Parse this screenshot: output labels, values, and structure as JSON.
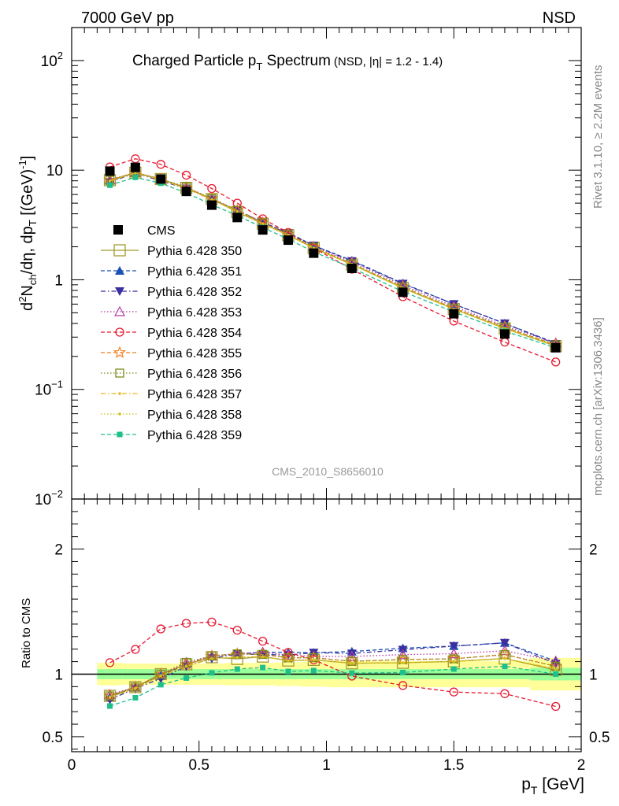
{
  "header": {
    "left": "7000 GeV pp",
    "right": "NSD",
    "side_rivet": "Rivet 3.1.10, ≥ 2.2M events",
    "side_mcplots": "mcplots.cern.ch [arXiv:1306.3436]",
    "watermark": "CMS_2010_S8656010"
  },
  "chart_data": {
    "type": "line",
    "title_main": "Charged Particle p",
    "title_sub": "T",
    "title_rest": " Spectrum",
    "title_small": "(NSD, |η| = 1.2 - 1.4)",
    "ylabel_main": "d²N",
    "ylabel_tex": "d2Nch/dη, dpT [(GeV)-1]",
    "ylabel_parts": [
      "d",
      "2",
      "N",
      "ch",
      "/dη, dp",
      "T",
      " [(GeV)",
      "-1",
      "]"
    ],
    "xlabel_parts": [
      "p",
      "T",
      " [GeV]"
    ],
    "ratio_ylabel": "Ratio to CMS",
    "xlim": [
      0,
      2
    ],
    "ylim": [
      0.01,
      200
    ],
    "ratio_ylim": [
      0.38,
      2.4
    ],
    "x_ticks": [
      "0",
      "0.5",
      "1",
      "1.5",
      "2"
    ],
    "x_tick_values": [
      0,
      0.5,
      1,
      1.5,
      2
    ],
    "y_ticks": [
      {
        "value": 100,
        "base": "10",
        "exp": "2"
      },
      {
        "value": 10,
        "base": "10",
        "exp": ""
      },
      {
        "value": 1,
        "base": "1",
        "exp": ""
      },
      {
        "value": 0.1,
        "base": "10",
        "exp": "−1"
      },
      {
        "value": 0.01,
        "base": "10",
        "exp": "−2"
      }
    ],
    "ratio_ticks": [
      {
        "value": 2,
        "label": "2"
      },
      {
        "value": 1,
        "label": "1"
      },
      {
        "value": 0.5,
        "label": "0.5"
      }
    ],
    "x": [
      0.15,
      0.25,
      0.35,
      0.45,
      0.55,
      0.65,
      0.75,
      0.85,
      0.95,
      1.1,
      1.3,
      1.5,
      1.7,
      1.9
    ],
    "data": {
      "name": "CMS",
      "values": [
        9.8,
        10.6,
        8.3,
        6.4,
        4.8,
        3.7,
        2.85,
        2.3,
        1.75,
        1.27,
        0.77,
        0.49,
        0.32,
        0.24
      ]
    },
    "band": {
      "x_edges": [
        0.1,
        0.2,
        0.3,
        0.4,
        0.5,
        0.6,
        0.7,
        0.8,
        0.9,
        1.0,
        1.2,
        1.4,
        1.6,
        1.8,
        2.0
      ],
      "stat_lo": [
        0.96,
        0.96,
        0.96,
        0.96,
        0.96,
        0.96,
        0.96,
        0.96,
        0.96,
        0.96,
        0.96,
        0.96,
        0.96,
        0.95
      ],
      "stat_hi": [
        1.04,
        1.04,
        1.04,
        1.04,
        1.04,
        1.04,
        1.04,
        1.04,
        1.04,
        1.04,
        1.04,
        1.04,
        1.04,
        1.05
      ],
      "total_lo": [
        0.91,
        0.915,
        0.915,
        0.915,
        0.915,
        0.91,
        0.91,
        0.905,
        0.9,
        0.895,
        0.895,
        0.895,
        0.895,
        0.87
      ],
      "total_hi": [
        1.09,
        1.085,
        1.085,
        1.085,
        1.085,
        1.09,
        1.09,
        1.095,
        1.1,
        1.105,
        1.105,
        1.105,
        1.105,
        1.13
      ]
    },
    "series": [
      {
        "name": "Pythia 6.428 350",
        "color": "#a49a2e",
        "marker": "open-square-large",
        "dash": "solid",
        "values": [
          8.1,
          9.5,
          8.3,
          6.9,
          5.45,
          4.15,
          3.25,
          2.55,
          1.95,
          1.38,
          0.84,
          0.54,
          0.36,
          0.248
        ]
      },
      {
        "name": "Pythia 6.428 351",
        "color": "#1c4fb6",
        "marker": "filled-triangle-up",
        "dash": "dash",
        "values": [
          8.0,
          9.5,
          8.2,
          6.9,
          5.5,
          4.3,
          3.35,
          2.7,
          2.05,
          1.5,
          0.93,
          0.6,
          0.4,
          0.265
        ]
      },
      {
        "name": "Pythia 6.428 352",
        "color": "#3a2f9e",
        "marker": "filled-triangle-down",
        "dash": "dashdot",
        "values": [
          7.8,
          9.4,
          8.0,
          6.8,
          5.4,
          4.3,
          3.3,
          2.65,
          2.05,
          1.48,
          0.92,
          0.6,
          0.4,
          0.26
        ]
      },
      {
        "name": "Pythia 6.428 353",
        "color": "#b43aa7",
        "marker": "open-triangle-up",
        "dash": "dotted",
        "values": [
          8.2,
          9.5,
          8.3,
          7.0,
          5.5,
          4.3,
          3.35,
          2.65,
          2.0,
          1.45,
          0.89,
          0.57,
          0.38,
          0.265
        ]
      },
      {
        "name": "Pythia 6.428 354",
        "color": "#e8182f",
        "marker": "open-circle",
        "dash": "dash",
        "values": [
          10.7,
          12.7,
          11.3,
          9.0,
          6.8,
          5.0,
          3.6,
          2.7,
          1.95,
          1.25,
          0.7,
          0.42,
          0.27,
          0.178
        ]
      },
      {
        "name": "Pythia 6.428 355",
        "color": "#f07d1a",
        "marker": "open-star",
        "dash": "dash",
        "values": [
          8.1,
          9.5,
          8.3,
          6.9,
          5.5,
          4.3,
          3.3,
          2.6,
          1.98,
          1.4,
          0.86,
          0.55,
          0.37,
          0.255
        ]
      },
      {
        "name": "Pythia 6.428 356",
        "color": "#7c8c1c",
        "marker": "open-square",
        "dash": "dotted",
        "values": [
          8.1,
          9.5,
          8.3,
          7.0,
          5.5,
          4.3,
          3.3,
          2.6,
          1.98,
          1.4,
          0.86,
          0.55,
          0.37,
          0.255
        ]
      },
      {
        "name": "Pythia 6.428 357",
        "color": "#e6b61c",
        "marker": "small-dot",
        "dash": "dashdot",
        "values": [
          8.0,
          9.4,
          8.2,
          6.8,
          5.4,
          4.2,
          3.25,
          2.55,
          1.95,
          1.38,
          0.84,
          0.54,
          0.36,
          0.25
        ]
      },
      {
        "name": "Pythia 6.428 358",
        "color": "#c9c41c",
        "marker": "small-dot",
        "dash": "dotted",
        "values": [
          8.0,
          9.4,
          8.2,
          6.8,
          5.4,
          4.2,
          3.25,
          2.55,
          1.95,
          1.38,
          0.84,
          0.54,
          0.36,
          0.25
        ]
      },
      {
        "name": "Pythia 6.428 359",
        "color": "#1fbf8c",
        "marker": "filled-square-small",
        "dash": "dash",
        "values": [
          7.3,
          8.6,
          7.6,
          6.2,
          4.85,
          3.85,
          3.0,
          2.35,
          1.8,
          1.28,
          0.78,
          0.51,
          0.34,
          0.24
        ]
      }
    ]
  }
}
